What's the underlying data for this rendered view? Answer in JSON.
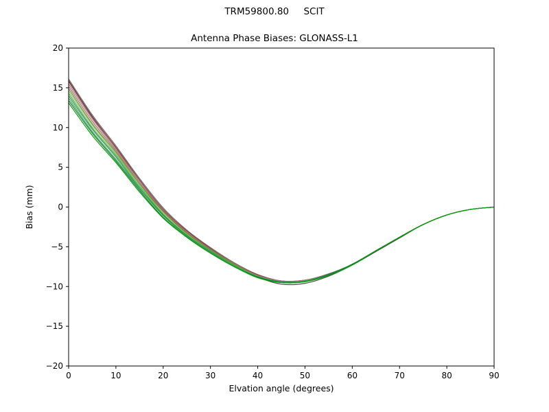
{
  "chart_data": {
    "type": "line",
    "title": "TRM59800.80     SCIT",
    "subtitle": "Antenna Phase Biases: GLONASS-L1",
    "xlabel": "Elvation angle (degrees)",
    "ylabel": "Bias (mm)",
    "xlim": [
      0,
      90
    ],
    "ylim": [
      -20,
      20
    ],
    "xticks": [
      0,
      10,
      20,
      30,
      40,
      50,
      60,
      70,
      80,
      90
    ],
    "yticks": [
      -20,
      -15,
      -10,
      -5,
      0,
      5,
      10,
      15,
      20
    ],
    "grid": false,
    "legend": "none",
    "x": [
      0,
      5,
      10,
      15,
      20,
      25,
      30,
      35,
      40,
      45,
      50,
      55,
      60,
      65,
      70,
      75,
      80,
      85,
      90
    ],
    "series": [
      {
        "name": "line-1",
        "color": "#6e6e6e",
        "values": [
          16.1,
          11.6,
          7.7,
          3.6,
          -0.1,
          -2.9,
          -5.1,
          -7.0,
          -8.5,
          -9.3,
          -9.2,
          -8.4,
          -7.2,
          -5.5,
          -3.8,
          -2.2,
          -1.0,
          -0.3,
          0.0
        ]
      },
      {
        "name": "line-2",
        "color": "#4a4a4a",
        "values": [
          15.9,
          11.4,
          7.5,
          3.4,
          -0.3,
          -3.1,
          -5.3,
          -7.2,
          -8.8,
          -9.7,
          -9.6,
          -8.7,
          -7.3,
          -5.6,
          -3.9,
          -2.2,
          -1.0,
          -0.3,
          0.0
        ]
      },
      {
        "name": "line-3",
        "color": "#8b3a3a",
        "values": [
          15.8,
          11.3,
          7.5,
          3.4,
          -0.3,
          -3.0,
          -5.2,
          -7.1,
          -8.5,
          -9.3,
          -9.2,
          -8.5,
          -7.2,
          -5.5,
          -3.8,
          -2.2,
          -1.0,
          -0.3,
          0.0
        ]
      },
      {
        "name": "line-4",
        "color": "#b07070",
        "values": [
          15.5,
          11.1,
          7.3,
          3.3,
          -0.4,
          -3.1,
          -5.3,
          -7.1,
          -8.6,
          -9.3,
          -9.2,
          -8.5,
          -7.2,
          -5.5,
          -3.8,
          -2.2,
          -1.0,
          -0.3,
          0.0
        ]
      },
      {
        "name": "line-5",
        "color": "#9e6b8a",
        "values": [
          15.2,
          10.8,
          7.1,
          3.1,
          -0.5,
          -3.2,
          -5.3,
          -7.2,
          -8.6,
          -9.3,
          -9.3,
          -8.5,
          -7.2,
          -5.5,
          -3.8,
          -2.2,
          -1.0,
          -0.3,
          0.0
        ]
      },
      {
        "name": "line-6",
        "color": "#6b8e23",
        "values": [
          14.9,
          10.5,
          6.9,
          2.9,
          -0.6,
          -3.3,
          -5.4,
          -7.2,
          -8.7,
          -9.4,
          -9.3,
          -8.5,
          -7.2,
          -5.5,
          -3.8,
          -2.2,
          -1.0,
          -0.3,
          0.0
        ]
      },
      {
        "name": "line-7",
        "color": "#8fbc5a",
        "values": [
          14.6,
          10.3,
          6.7,
          2.8,
          -0.8,
          -3.4,
          -5.5,
          -7.3,
          -8.7,
          -9.4,
          -9.3,
          -8.5,
          -7.2,
          -5.5,
          -3.8,
          -2.2,
          -1.0,
          -0.3,
          0.0
        ]
      },
      {
        "name": "line-8",
        "color": "#4daf4a",
        "values": [
          14.3,
          10.0,
          6.5,
          2.6,
          -0.9,
          -3.5,
          -5.5,
          -7.3,
          -8.7,
          -9.4,
          -9.3,
          -8.5,
          -7.2,
          -5.5,
          -3.8,
          -2.2,
          -1.0,
          -0.3,
          0.0
        ]
      },
      {
        "name": "line-9",
        "color": "#2e8b57",
        "values": [
          14.0,
          9.8,
          6.3,
          2.4,
          -1.0,
          -3.6,
          -5.6,
          -7.4,
          -8.8,
          -9.4,
          -9.3,
          -8.5,
          -7.2,
          -5.5,
          -3.8,
          -2.2,
          -1.0,
          -0.3,
          0.0
        ]
      },
      {
        "name": "line-10",
        "color": "#31a354",
        "values": [
          13.7,
          9.5,
          6.0,
          2.3,
          -1.1,
          -3.7,
          -5.7,
          -7.4,
          -8.8,
          -9.5,
          -9.3,
          -8.5,
          -7.2,
          -5.5,
          -3.8,
          -2.2,
          -1.0,
          -0.3,
          0.0
        ]
      },
      {
        "name": "line-11",
        "color": "#1b7837",
        "values": [
          13.4,
          9.3,
          5.8,
          2.1,
          -1.3,
          -3.8,
          -5.8,
          -7.5,
          -8.8,
          -9.5,
          -9.4,
          -8.5,
          -7.2,
          -5.5,
          -3.8,
          -2.2,
          -1.0,
          -0.3,
          0.0
        ]
      },
      {
        "name": "line-12",
        "color": "#00a000",
        "values": [
          13.1,
          9.0,
          5.6,
          1.9,
          -1.4,
          -3.8,
          -5.8,
          -7.5,
          -8.9,
          -9.5,
          -9.4,
          -8.6,
          -7.3,
          -5.5,
          -3.8,
          -2.2,
          -1.0,
          -0.3,
          0.0
        ]
      }
    ]
  }
}
